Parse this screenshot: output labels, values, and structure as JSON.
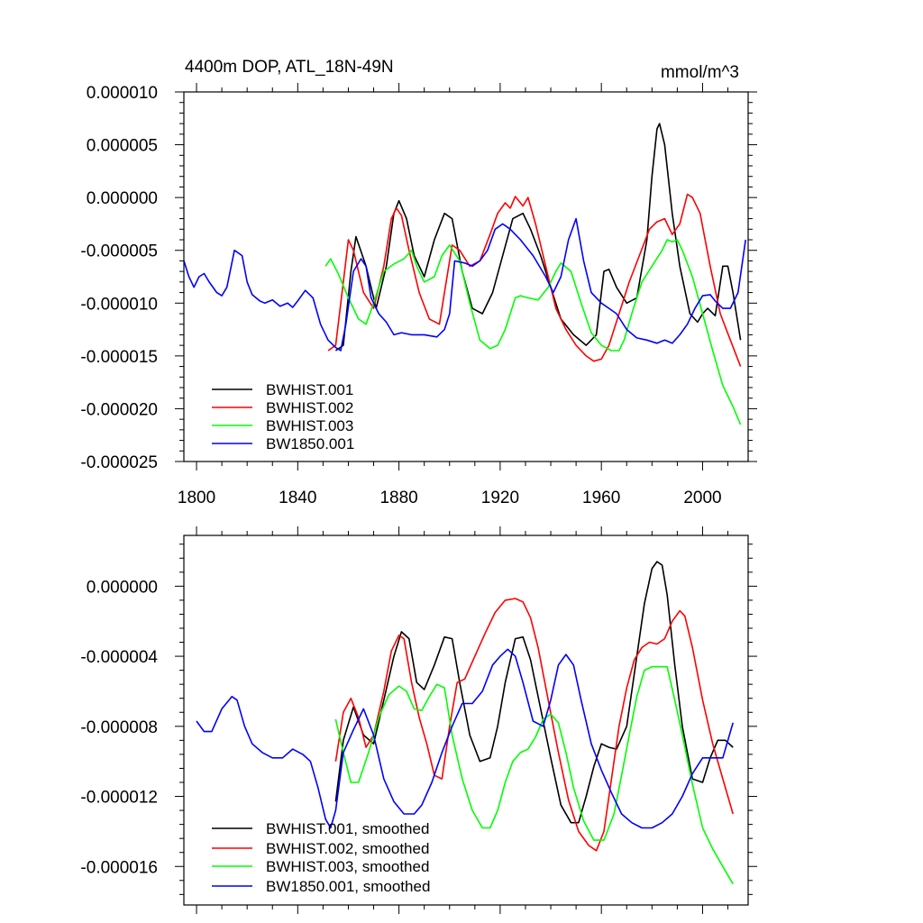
{
  "chart_data": [
    {
      "type": "line",
      "title_left": "4400m DOP, ATL_18N-49N",
      "title_right": "mmol/m^3",
      "xlabel": "",
      "ylabel": "",
      "xlim": [
        1795,
        2018
      ],
      "ylim": [
        -2.5e-05,
        1e-05
      ],
      "x_ticks": [
        1800,
        1840,
        1880,
        1920,
        1960,
        2000
      ],
      "x_tick_labels": [
        "1800",
        "1840",
        "1880",
        "1920",
        "1960",
        "2000"
      ],
      "y_ticks": [
        1e-05,
        5e-06,
        0,
        -5e-06,
        -1e-05,
        -1.5e-05,
        -2e-05,
        -2.5e-05
      ],
      "y_tick_labels": [
        "0.000010",
        "0.000005",
        "0.000000",
        "-0.000005",
        "-0.000010",
        "-0.000015",
        "-0.000020",
        "-0.000025"
      ],
      "legend_position": "bottom-left",
      "series": [
        {
          "name": "BWHIST.001",
          "color": "#000000",
          "x": [
            1855,
            1858,
            1861,
            1863,
            1867,
            1871,
            1875,
            1878,
            1880,
            1883,
            1886,
            1890,
            1894,
            1898,
            1901,
            1905,
            1909,
            1913,
            1917,
            1921,
            1925,
            1929,
            1932,
            1936,
            1940,
            1944,
            1949,
            1954,
            1958,
            1961,
            1963,
            1966,
            1970,
            1974,
            1978,
            1980,
            1982,
            1983,
            1985,
            1988,
            1991,
            1995,
            1998,
            2000,
            2002,
            2005,
            2008,
            2010,
            2012,
            2015
          ],
          "y": [
            -1.45e-05,
            -1.4e-05,
            -7e-06,
            -3.7e-06,
            -6.5e-06,
            -1.05e-05,
            -6.5e-06,
            -1.5e-06,
            -3e-07,
            -2e-06,
            -5.5e-06,
            -7.5e-06,
            -4e-06,
            -1.5e-06,
            -2e-06,
            -7e-06,
            -1.05e-05,
            -1.1e-05,
            -9e-06,
            -5.5e-06,
            -2e-06,
            -1.5e-06,
            -3e-06,
            -5.5e-06,
            -8.5e-06,
            -1.15e-05,
            -1.3e-05,
            -1.4e-05,
            -1.3e-05,
            -7e-06,
            -6.8e-06,
            -8.5e-06,
            -1e-05,
            -9.5e-06,
            -4e-06,
            2e-06,
            6.5e-06,
            7e-06,
            5e-06,
            -1.5e-06,
            -6.5e-06,
            -1.1e-05,
            -1.18e-05,
            -1.1e-05,
            -1.05e-05,
            -1.12e-05,
            -6.5e-06,
            -6.5e-06,
            -9e-06,
            -1.35e-05
          ]
        },
        {
          "name": "BWHIST.002",
          "color": "#ff0000",
          "x": [
            1852,
            1855,
            1858,
            1860,
            1862,
            1866,
            1870,
            1874,
            1877,
            1879,
            1881,
            1884,
            1888,
            1892,
            1896,
            1898,
            1901,
            1904,
            1908,
            1912,
            1916,
            1919,
            1922,
            1924,
            1926,
            1929,
            1931,
            1934,
            1938,
            1942,
            1946,
            1950,
            1954,
            1957,
            1960,
            1963,
            1967,
            1971,
            1975,
            1979,
            1982,
            1985,
            1988,
            1991,
            1994,
            1996,
            1999,
            2003,
            2007,
            2011,
            2015
          ],
          "y": [
            -1.45e-05,
            -1.4e-05,
            -8e-06,
            -4e-06,
            -5e-06,
            -9e-06,
            -1.05e-05,
            -6.5e-06,
            -2e-06,
            -1e-06,
            -1.7e-06,
            -5e-06,
            -9e-06,
            -1.15e-05,
            -1.2e-05,
            -9e-06,
            -4.5e-06,
            -5e-06,
            -6.5e-06,
            -6e-06,
            -3.5e-06,
            -1.5e-06,
            -5e-07,
            -1e-06,
            1e-07,
            -8e-07,
            0,
            -2.5e-06,
            -6.5e-06,
            -1.05e-05,
            -1.25e-05,
            -1.4e-05,
            -1.5e-05,
            -1.55e-05,
            -1.53e-05,
            -1.4e-05,
            -1.1e-05,
            -8e-06,
            -5.5e-06,
            -3e-06,
            -2.3e-06,
            -2e-06,
            -3.5e-06,
            -2.5e-06,
            3e-07,
            0,
            -1.5e-06,
            -6.5e-06,
            -1.1e-05,
            -1.35e-05,
            -1.6e-05
          ]
        },
        {
          "name": "BWHIST.003",
          "color": "#00ff00",
          "x": [
            1851,
            1853,
            1856,
            1860,
            1864,
            1867,
            1870,
            1874,
            1878,
            1882,
            1885,
            1887,
            1890,
            1894,
            1897,
            1900,
            1904,
            1908,
            1912,
            1916,
            1919,
            1922,
            1926,
            1928,
            1931,
            1935,
            1939,
            1942,
            1944,
            1948,
            1952,
            1956,
            1960,
            1964,
            1967,
            1969,
            1972,
            1976,
            1980,
            1984,
            1986,
            1988,
            1990,
            1992,
            1996,
            2000,
            2004,
            2008,
            2012,
            2015
          ],
          "y": [
            -6.5e-06,
            -5.8e-06,
            -7.2e-06,
            -9.5e-06,
            -1.15e-05,
            -1.2e-05,
            -1e-05,
            -7e-06,
            -6.3e-06,
            -5.8e-06,
            -5e-06,
            -6.5e-06,
            -8e-06,
            -7.5e-06,
            -5.5e-06,
            -4.5e-06,
            -6e-06,
            -1e-05,
            -1.35e-05,
            -1.43e-05,
            -1.4e-05,
            -1.25e-05,
            -9.5e-06,
            -9.3e-06,
            -9.5e-06,
            -9.7e-06,
            -8.5e-06,
            -7e-06,
            -6.2e-06,
            -7e-06,
            -1e-05,
            -1.28e-05,
            -1.4e-05,
            -1.45e-05,
            -1.45e-05,
            -1.35e-05,
            -1.1e-05,
            -8e-06,
            -6.5e-06,
            -5e-06,
            -4e-06,
            -4.2e-06,
            -4e-06,
            -5e-06,
            -7.5e-06,
            -1.1e-05,
            -1.45e-05,
            -1.78e-05,
            -1.98e-05,
            -2.15e-05
          ]
        },
        {
          "name": "BW1850.001",
          "color": "#0000ff",
          "x": [
            1795,
            1797,
            1799,
            1801,
            1803,
            1805,
            1808,
            1810,
            1812,
            1815,
            1818,
            1820,
            1822,
            1825,
            1827,
            1830,
            1833,
            1836,
            1838,
            1840,
            1843,
            1846,
            1849,
            1852,
            1855,
            1857,
            1859,
            1862,
            1865,
            1867,
            1869,
            1872,
            1875,
            1878,
            1881,
            1885,
            1890,
            1895,
            1898,
            1900,
            1902,
            1906,
            1909,
            1912,
            1915,
            1918,
            1921,
            1924,
            1928,
            1933,
            1938,
            1941,
            1944,
            1947,
            1950,
            1953,
            1956,
            1960,
            1963,
            1966,
            1970,
            1974,
            1978,
            1982,
            1985,
            1988,
            1991,
            1994,
            1997,
            2000,
            2003,
            2005,
            2008,
            2011,
            2014,
            2017
          ],
          "y": [
            -6e-06,
            -7.5e-06,
            -8.5e-06,
            -7.5e-06,
            -7.2e-06,
            -8e-06,
            -9e-06,
            -9.3e-06,
            -8.5e-06,
            -5e-06,
            -5.5e-06,
            -8e-06,
            -9.2e-06,
            -9.8e-06,
            -1e-05,
            -9.7e-06,
            -1.03e-05,
            -1e-05,
            -1.04e-05,
            -9.8e-06,
            -8.8e-06,
            -9.5e-06,
            -1.2e-05,
            -1.35e-05,
            -1.42e-05,
            -1.45e-05,
            -1.2e-05,
            -7e-06,
            -5.8e-06,
            -6.5e-06,
            -9.5e-06,
            -1.1e-05,
            -1.18e-05,
            -1.3e-05,
            -1.28e-05,
            -1.3e-05,
            -1.3e-05,
            -1.32e-05,
            -1.25e-05,
            -1.1e-05,
            -6e-06,
            -6.2e-06,
            -6.5e-06,
            -6e-06,
            -5e-06,
            -3e-06,
            -2.5e-06,
            -3e-06,
            -4e-06,
            -5.5e-06,
            -7.5e-06,
            -9e-06,
            -7.5e-06,
            -4e-06,
            -2e-06,
            -6e-06,
            -9e-06,
            -1e-05,
            -1.05e-05,
            -1.1e-05,
            -1.25e-05,
            -1.33e-05,
            -1.35e-05,
            -1.38e-05,
            -1.35e-05,
            -1.38e-05,
            -1.3e-05,
            -1.2e-05,
            -1.05e-05,
            -9.3e-06,
            -9.2e-06,
            -9.8e-06,
            -1.05e-05,
            -1.05e-05,
            -9e-06,
            -4e-06
          ]
        }
      ]
    },
    {
      "type": "line",
      "title_left": "",
      "title_right": "",
      "xlabel": "",
      "ylabel": "",
      "xlim": [
        1795,
        2018
      ],
      "ylim": [
        -1.82e-05,
        2.9e-06
      ],
      "x_ticks": [
        1800,
        1840,
        1880,
        1920,
        1960,
        2000
      ],
      "x_tick_labels": [],
      "y_ticks": [
        0,
        -4e-06,
        -8e-06,
        -1.2e-05,
        -1.6e-05
      ],
      "y_tick_labels": [
        "0.000000",
        "-0.000004",
        "-0.000008",
        "-0.000012",
        "-0.000016"
      ],
      "legend_position": "bottom-left",
      "series": [
        {
          "name": "BWHIST.001, smoothed",
          "color": "#000000",
          "x": [
            1855,
            1858,
            1862,
            1866,
            1870,
            1874,
            1878,
            1881,
            1884,
            1887,
            1890,
            1894,
            1898,
            1901,
            1904,
            1908,
            1912,
            1916,
            1919,
            1922,
            1926,
            1929,
            1932,
            1936,
            1940,
            1944,
            1948,
            1951,
            1954,
            1957,
            1960,
            1963,
            1966,
            1970,
            1974,
            1977,
            1980,
            1982,
            1984,
            1986,
            1989,
            1992,
            1996,
            2000,
            2003,
            2006,
            2009,
            2012
          ],
          "y": [
            -1.23e-05,
            -8.8e-06,
            -6.9e-06,
            -8.5e-06,
            -9e-06,
            -6.5e-06,
            -4e-06,
            -2.6e-06,
            -3e-06,
            -5.5e-06,
            -5.9e-06,
            -4.5e-06,
            -2.9e-06,
            -3e-06,
            -5.5e-06,
            -8.5e-06,
            -1e-05,
            -9.8e-06,
            -8e-06,
            -5.5e-06,
            -3e-06,
            -2.9e-06,
            -4.2e-06,
            -7e-06,
            -9.8e-06,
            -1.25e-05,
            -1.35e-05,
            -1.35e-05,
            -1.2e-05,
            -1.03e-05,
            -9e-06,
            -9.2e-06,
            -9.3e-06,
            -8e-06,
            -4e-06,
            -1e-06,
            1e-06,
            1.4e-06,
            1.2e-06,
            -5e-07,
            -4.5e-06,
            -8e-06,
            -1.1e-05,
            -1.12e-05,
            -9.8e-06,
            -8.8e-06,
            -8.8e-06,
            -9.2e-06
          ]
        },
        {
          "name": "BWHIST.002, smoothed",
          "color": "#ff0000",
          "x": [
            1855,
            1858,
            1861,
            1864,
            1867,
            1870,
            1874,
            1877,
            1880,
            1882,
            1885,
            1888,
            1891,
            1894,
            1897,
            1900,
            1903,
            1906,
            1910,
            1914,
            1918,
            1922,
            1926,
            1929,
            1932,
            1935,
            1939,
            1943,
            1947,
            1951,
            1955,
            1958,
            1961,
            1964,
            1967,
            1970,
            1973,
            1976,
            1979,
            1982,
            1985,
            1988,
            1991,
            1993,
            1996,
            2000,
            2004,
            2008,
            2012
          ],
          "y": [
            -1e-05,
            -7.2e-06,
            -6.4e-06,
            -7.5e-06,
            -9.2e-06,
            -8.5e-06,
            -6e-06,
            -3.7e-06,
            -2.8e-06,
            -3e-06,
            -5.5e-06,
            -7.5e-06,
            -9e-06,
            -1.08e-05,
            -1.1e-05,
            -8e-06,
            -5.5e-06,
            -5.3e-06,
            -4e-06,
            -2.7e-06,
            -1.5e-06,
            -8e-07,
            -7e-07,
            -9e-07,
            -1.8e-06,
            -3.5e-06,
            -6.5e-06,
            -9.5e-06,
            -1.22e-05,
            -1.4e-05,
            -1.48e-05,
            -1.51e-05,
            -1.4e-05,
            -1.1e-05,
            -8e-06,
            -5.8e-06,
            -4.2e-06,
            -3.5e-06,
            -3.2e-06,
            -3.3e-06,
            -3e-06,
            -2e-06,
            -1.4e-06,
            -1.7e-06,
            -3.5e-06,
            -6.5e-06,
            -9e-06,
            -1.1e-05,
            -1.3e-05
          ]
        },
        {
          "name": "BWHIST.003, smoothed",
          "color": "#00ff00",
          "x": [
            1855,
            1858,
            1861,
            1864,
            1868,
            1872,
            1876,
            1880,
            1883,
            1886,
            1889,
            1892,
            1895,
            1898,
            1901,
            1905,
            1909,
            1913,
            1916,
            1919,
            1922,
            1925,
            1928,
            1931,
            1934,
            1937,
            1940,
            1943,
            1946,
            1949,
            1953,
            1957,
            1961,
            1965,
            1968,
            1971,
            1974,
            1977,
            1980,
            1983,
            1986,
            1989,
            1992,
            1996,
            2000,
            2004,
            2008,
            2012
          ],
          "y": [
            -7.6e-06,
            -9.5e-06,
            -1.12e-05,
            -1.12e-05,
            -9.5e-06,
            -7.5e-06,
            -6.2e-06,
            -5.7e-06,
            -6e-06,
            -7e-06,
            -7.1e-06,
            -6.3e-06,
            -5.6e-06,
            -5.8e-06,
            -8.5e-06,
            -1.1e-05,
            -1.28e-05,
            -1.38e-05,
            -1.38e-05,
            -1.28e-05,
            -1.12e-05,
            -1e-05,
            -9.5e-06,
            -9.3e-06,
            -8.6e-06,
            -7.6e-06,
            -7.3e-06,
            -7.8e-06,
            -9.5e-06,
            -1.15e-05,
            -1.34e-05,
            -1.45e-05,
            -1.45e-05,
            -1.3e-05,
            -1.08e-05,
            -8.5e-06,
            -6.3e-06,
            -4.8e-06,
            -4.6e-06,
            -4.6e-06,
            -4.6e-06,
            -6.5e-06,
            -8.5e-06,
            -1.13e-05,
            -1.38e-05,
            -1.5e-05,
            -1.6e-05,
            -1.7e-05
          ]
        },
        {
          "name": "BW1850.001, smoothed",
          "color": "#0000ff",
          "x": [
            1800,
            1803,
            1806,
            1810,
            1814,
            1816,
            1819,
            1822,
            1826,
            1830,
            1834,
            1838,
            1842,
            1845,
            1848,
            1851,
            1853,
            1855,
            1858,
            1862,
            1866,
            1870,
            1874,
            1878,
            1882,
            1886,
            1889,
            1893,
            1897,
            1901,
            1905,
            1909,
            1913,
            1917,
            1920,
            1923,
            1926,
            1929,
            1933,
            1937,
            1940,
            1943,
            1946,
            1949,
            1952,
            1956,
            1960,
            1964,
            1968,
            1972,
            1976,
            1980,
            1984,
            1988,
            1992,
            1996,
            2000,
            2004,
            2008,
            2012
          ],
          "y": [
            -7.7e-06,
            -8.3e-06,
            -8.3e-06,
            -7e-06,
            -6.3e-06,
            -6.5e-06,
            -8e-06,
            -9e-06,
            -9.5e-06,
            -9.8e-06,
            -9.8e-06,
            -9.3e-06,
            -9.6e-06,
            -1e-05,
            -1.15e-05,
            -1.33e-05,
            -1.38e-05,
            -1.28e-05,
            -9.5e-06,
            -8.2e-06,
            -7e-06,
            -8.5e-06,
            -1.1e-05,
            -1.23e-05,
            -1.3e-05,
            -1.3e-05,
            -1.25e-05,
            -1.12e-05,
            -9.5e-06,
            -8e-06,
            -6.7e-06,
            -6.7e-06,
            -6e-06,
            -4.5e-06,
            -4e-06,
            -3.6e-06,
            -4e-06,
            -5.5e-06,
            -7.7e-06,
            -8e-06,
            -6.5e-06,
            -4.5e-06,
            -3.9e-06,
            -4.5e-06,
            -6.5e-06,
            -9e-06,
            -1.05e-05,
            -1.18e-05,
            -1.3e-05,
            -1.35e-05,
            -1.38e-05,
            -1.38e-05,
            -1.35e-05,
            -1.3e-05,
            -1.2e-05,
            -1.07e-05,
            -9.8e-06,
            -9.8e-06,
            -9.8e-06,
            -7.8e-06
          ]
        }
      ]
    }
  ]
}
